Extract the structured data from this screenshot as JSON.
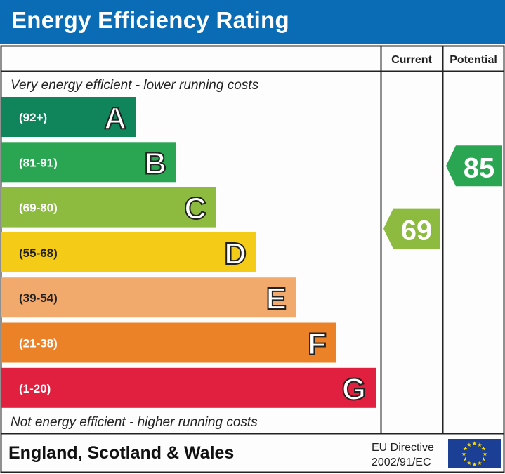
{
  "header": {
    "title": "Energy Efficiency Rating"
  },
  "table": {
    "col_current": "Current",
    "col_potential": "Potential",
    "top_note": "Very energy efficient - lower running costs",
    "bottom_note": "Not energy efficient - higher running costs"
  },
  "footer": {
    "region": "England, Scotland & Wales",
    "directive_line1": "EU Directive",
    "directive_line2": "2002/91/EC",
    "flag_icon": "eu-flag-icon"
  },
  "chart_data": {
    "type": "bar",
    "bands": [
      {
        "letter": "A",
        "range": "(92+)",
        "color": "#10845a"
      },
      {
        "letter": "B",
        "range": "(81-91)",
        "color": "#2aa552"
      },
      {
        "letter": "C",
        "range": "(69-80)",
        "color": "#8dbb40"
      },
      {
        "letter": "D",
        "range": "(55-68)",
        "color": "#f4cc17"
      },
      {
        "letter": "E",
        "range": "(39-54)",
        "color": "#f2aa6c"
      },
      {
        "letter": "F",
        "range": "(21-38)",
        "color": "#ec8228"
      },
      {
        "letter": "G",
        "range": "(1-20)",
        "color": "#e0203e"
      }
    ],
    "current": {
      "value": "69",
      "band": "C",
      "color": "#8dbb40"
    },
    "potential": {
      "value": "85",
      "band": "B",
      "color": "#2aa552"
    }
  }
}
